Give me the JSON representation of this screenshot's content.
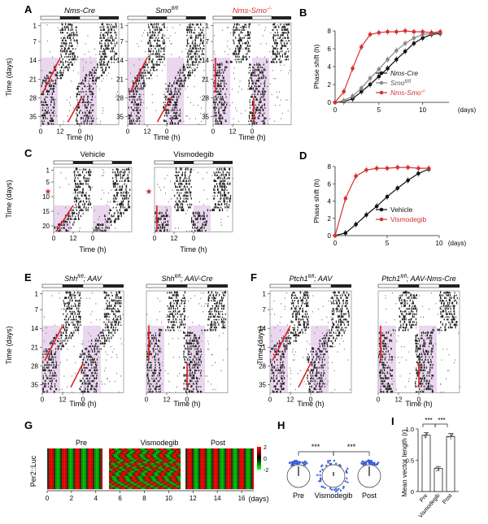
{
  "labels": {
    "time_days": "Time (days)",
    "time_h": "Time (h)",
    "phase_shift": "Phase shift (h)",
    "days_unit": "(days)",
    "per2": "Per2::Luc",
    "mvl": "Mean vector length (r)",
    "significance": "***"
  },
  "panels": {
    "A": {
      "letter": "A",
      "titles": [
        "Nms-Cre",
        "Smo",
        "Nms-Smo"
      ],
      "title_sup": [
        "",
        "fl/fl",
        "-/-"
      ],
      "y_ticks": [
        "1",
        "7",
        "14",
        "21",
        "28",
        "35"
      ],
      "x_ticks": [
        "0",
        "12",
        "0"
      ]
    },
    "B": {
      "letter": "B"
    },
    "C": {
      "letter": "C",
      "titles": [
        "Vehicle",
        "Vismodegib"
      ],
      "y_ticks": [
        "1",
        "5",
        "10",
        "15",
        "20"
      ],
      "x_ticks": [
        "0",
        "12",
        "0"
      ]
    },
    "D": {
      "letter": "D"
    },
    "E": {
      "letter": "E",
      "titles": [
        "Shh",
        "Shh"
      ],
      "title_sup": [
        "fl/fl",
        "fl/fl"
      ],
      "title_suffix": [
        "; AAV",
        "; AAV-Cre"
      ],
      "y_ticks": [
        "1",
        "7",
        "14",
        "21",
        "28",
        "35"
      ],
      "x_ticks": [
        "0",
        "12",
        "0"
      ]
    },
    "F": {
      "letter": "F",
      "titles": [
        "Ptch1",
        "Ptch1"
      ],
      "title_sup": [
        "fl/fl",
        "fl/fl"
      ],
      "title_suffix": [
        "; AAV",
        "; AAV-Nms-Cre"
      ],
      "y_ticks": [
        "1",
        "7",
        "14",
        "21",
        "28",
        "35"
      ],
      "x_ticks": [
        "0",
        "12",
        "0"
      ]
    },
    "G": {
      "letter": "G",
      "segments": [
        "Pre",
        "Vismodegib",
        "Post"
      ],
      "x_ticks": [
        "0",
        "2",
        "4",
        "6",
        "8",
        "10",
        "12",
        "14",
        "16"
      ],
      "colorbar_ticks": [
        "2",
        "0",
        "-2"
      ]
    },
    "H": {
      "letter": "H",
      "groups": [
        "Pre",
        "Vismodegib",
        "Post"
      ]
    },
    "I": {
      "letter": "I",
      "groups": [
        "Pre",
        "Vismodegib",
        "Post"
      ]
    }
  },
  "colors": {
    "red": "#d93030",
    "grey_line": "#8a8a8a",
    "black": "#111111",
    "lilac": "#d9b4e0",
    "actogram": "#222222",
    "blue": "#3a5fd8"
  },
  "chart_data": [
    {
      "panel": "B",
      "type": "line",
      "x": [
        0,
        1,
        2,
        3,
        4,
        5,
        6,
        7,
        8,
        9,
        10,
        11,
        12
      ],
      "series": [
        {
          "name": "Nms-Cre",
          "values": [
            0,
            0.1,
            0.4,
            1.2,
            2.0,
            2.9,
            3.8,
            4.8,
            5.7,
            6.6,
            7.2,
            7.6,
            7.7
          ]
        },
        {
          "name": "Smo",
          "sup": "fl/fl",
          "values": [
            0,
            0.2,
            0.7,
            1.6,
            2.7,
            3.7,
            4.8,
            5.8,
            6.6,
            7.2,
            7.6,
            7.7,
            7.8
          ]
        },
        {
          "name": "Nms-Smo",
          "sup": "-/-",
          "values": [
            0,
            1.2,
            3.8,
            6.2,
            7.6,
            7.8,
            7.9,
            7.9,
            8.0,
            7.9,
            7.9,
            7.8,
            7.9
          ]
        }
      ],
      "series_colors": [
        "#111111",
        "#8a8a8a",
        "#d93030"
      ],
      "xlim": [
        0,
        13
      ],
      "ylim": [
        0,
        8
      ],
      "y_ticks": [
        0,
        2,
        4,
        6,
        8
      ],
      "x_ticks": [
        0,
        5,
        10
      ],
      "xlabel": "(days)",
      "ylabel": "Phase shift (h)"
    },
    {
      "panel": "D",
      "type": "line",
      "x": [
        0,
        1,
        2,
        3,
        4,
        5,
        6,
        7,
        8,
        9
      ],
      "series": [
        {
          "name": "Vehicle",
          "values": [
            0,
            0.3,
            1.3,
            2.4,
            3.4,
            4.5,
            5.5,
            6.4,
            7.2,
            7.7
          ]
        },
        {
          "name": "Vismodegib",
          "values": [
            0,
            4.3,
            6.9,
            7.6,
            7.8,
            7.8,
            7.9,
            7.9,
            7.8,
            7.8
          ]
        }
      ],
      "series_colors": [
        "#111111",
        "#d93030"
      ],
      "xlim": [
        0,
        10
      ],
      "ylim": [
        0,
        8
      ],
      "y_ticks": [
        0,
        2,
        4,
        6,
        8
      ],
      "x_ticks": [
        0,
        5,
        10
      ],
      "xlabel": "(days)",
      "ylabel": "Phase shift (h)"
    },
    {
      "panel": "I",
      "type": "bar",
      "categories": [
        "Pre",
        "Vismodegib",
        "Post"
      ],
      "values": [
        0.9,
        0.37,
        0.88
      ],
      "errors": [
        0.04,
        0.03,
        0.05
      ],
      "ylim": [
        0,
        1
      ],
      "y_ticks": [
        0,
        0.5,
        1.0
      ],
      "ylabel": "Mean vector length (r)"
    }
  ]
}
